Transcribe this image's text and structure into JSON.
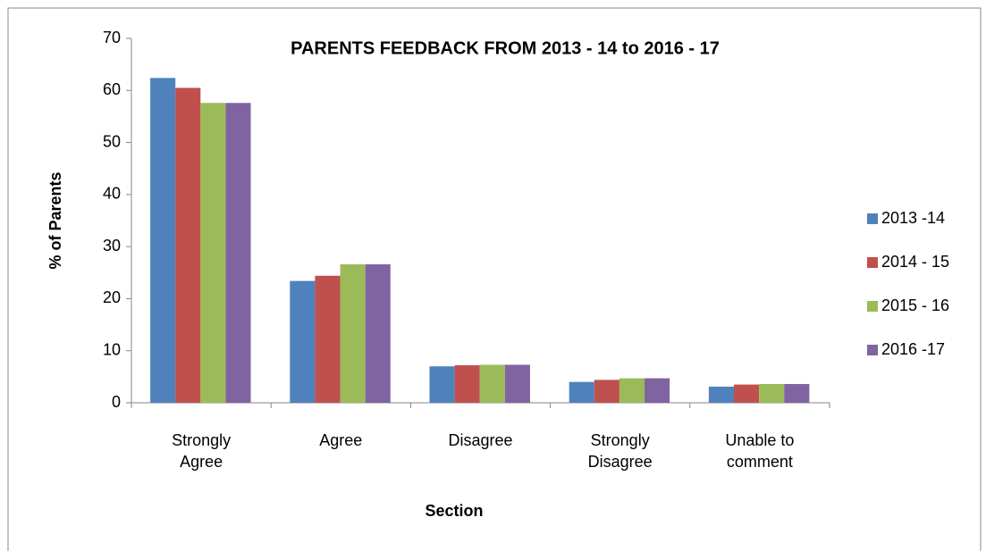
{
  "chart_data": {
    "type": "bar",
    "title": "PARENTS FEEDBACK FROM 2013 - 14 to 2016 - 17",
    "x_label": "Section",
    "y_label": "% of Parents",
    "categories": [
      "Strongly Agree",
      "Agree",
      "Disagree",
      "Strongly Disagree",
      "Unable to comment"
    ],
    "series": [
      {
        "name": "2013 -14",
        "color": "#4f81bd",
        "values": [
          62.4,
          23.4,
          7.0,
          4.0,
          3.1
        ]
      },
      {
        "name": "2014 - 15",
        "color": "#c0504d",
        "values": [
          60.5,
          24.4,
          7.2,
          4.4,
          3.5
        ]
      },
      {
        "name": "2015 - 16",
        "color": "#9bbb59",
        "values": [
          57.6,
          26.6,
          7.3,
          4.7,
          3.6
        ]
      },
      {
        "name": "2016 -17",
        "color": "#8064a2",
        "values": [
          57.6,
          26.6,
          7.3,
          4.7,
          3.6
        ]
      }
    ],
    "ylim": [
      0,
      70
    ],
    "yticks": [
      0,
      10,
      20,
      30,
      40,
      50,
      60,
      70
    ],
    "grid": false,
    "legend": "right"
  }
}
